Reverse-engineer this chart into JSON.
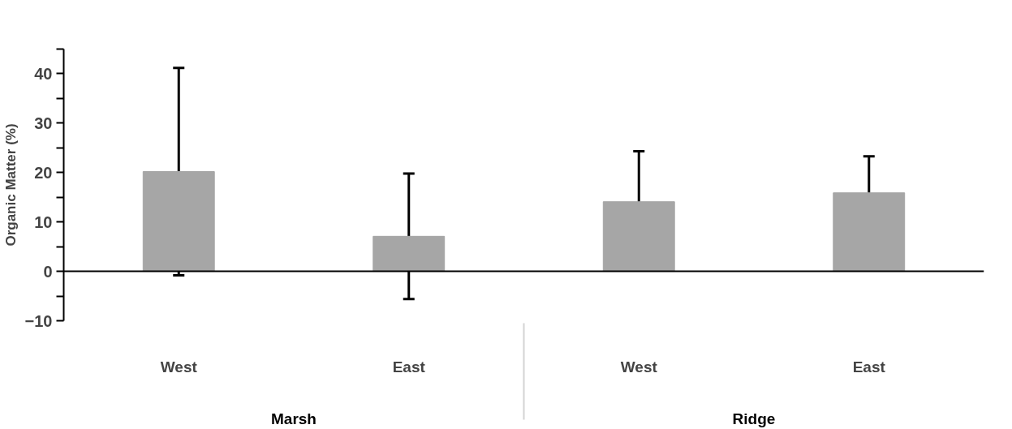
{
  "chart_data": {
    "type": "bar",
    "ylabel": "Organic Matter (%)",
    "categories": [
      "West",
      "East",
      "West",
      "East"
    ],
    "values": [
      20.2,
      7.1,
      14.1,
      15.9
    ],
    "errors": [
      21,
      12.7,
      10.2,
      7.4
    ],
    "color": "#a6a6a6",
    "ylim": [
      -10,
      45
    ],
    "yticks": [
      -10,
      {
        "value": -5,
        "label": null
      },
      0,
      {
        "value": 5,
        "label": null
      },
      10,
      {
        "value": 15,
        "label": null
      },
      20,
      {
        "value": 25,
        "label": null
      },
      30,
      {
        "value": 35,
        "label": null
      },
      40,
      {
        "value": 45,
        "label": null
      }
    ],
    "annotations": [
      "Marsh",
      "Ridge"
    ],
    "ref_lines": [
      {
        "axis": "y",
        "value": 0,
        "color": "#000000"
      }
    ],
    "grid": false
  }
}
